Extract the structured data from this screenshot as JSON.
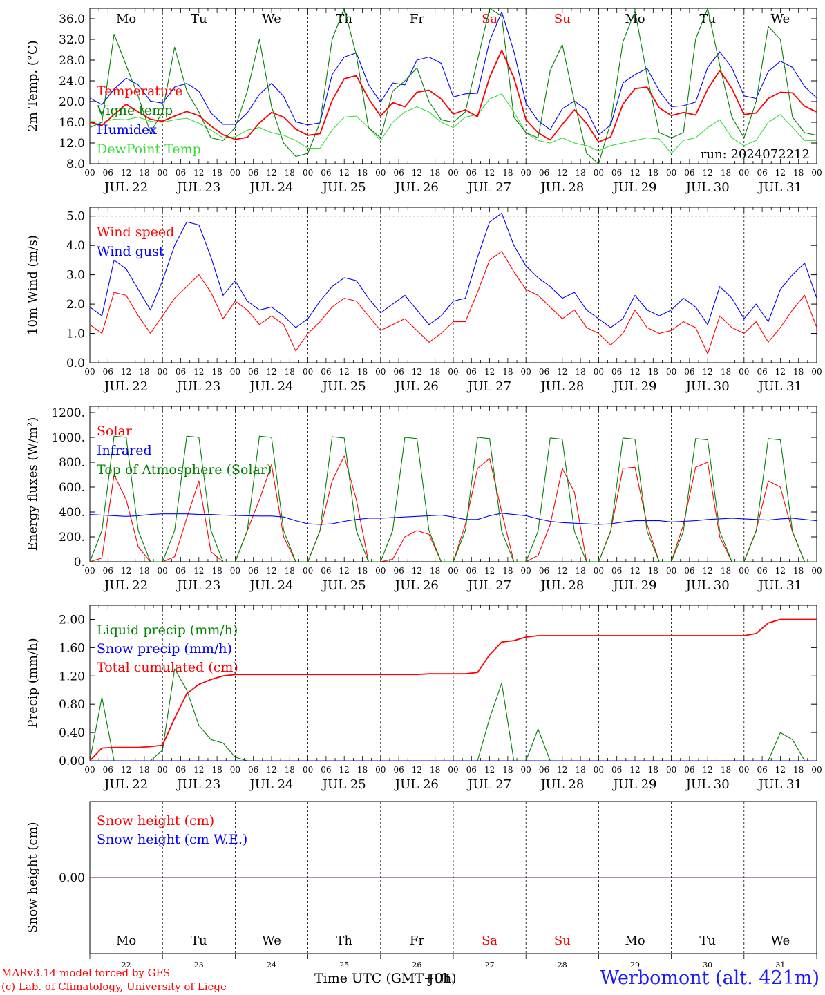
{
  "days": [
    "JUL 22",
    "JUL 23",
    "JUL 24",
    "JUL 25",
    "JUL 26",
    "JUL 27",
    "JUL 28",
    "JUL 29",
    "JUL 30",
    "JUL 31"
  ],
  "day_numbers": [
    "22",
    "23",
    "24",
    "25",
    "26",
    "27",
    "28",
    "29",
    "30",
    "31"
  ],
  "weekdays": [
    "Mo",
    "Tu",
    "We",
    "Th",
    "Fr",
    "Sa",
    "Su",
    "Mo",
    "Tu",
    "We"
  ],
  "weekend_flags": [
    false,
    false,
    false,
    false,
    false,
    true,
    true,
    false,
    false,
    false
  ],
  "hour_ticks": [
    "00",
    "06",
    "12",
    "18"
  ],
  "final_hour_tick": "00",
  "colors": {
    "red": "#ff0000",
    "green": "#008000",
    "blue": "#0000ff",
    "lightgreen": "#33dd33",
    "purple": "#800080",
    "station": "#1a1aff"
  },
  "footer": {
    "credit_line1": "MARv3.14 model forced by GFS",
    "credit_line2": "(c) Lab. of Climatology, University of Liege",
    "x_title": "Time UTC (GMT+0h)",
    "x_title_overlap": "JUL",
    "station": "Werbomont (alt. 421m)"
  },
  "chart_data": [
    {
      "type": "line",
      "ylabel": "2m Temp. (°C)",
      "ylim": [
        8.0,
        38.0
      ],
      "yticks": [
        "8.0",
        "12.0",
        "16.0",
        "20.0",
        "24.0",
        "28.0",
        "32.0",
        "36.0"
      ],
      "annotation": "run: 2024072212",
      "series": [
        {
          "name": "Temperature",
          "color": "#ff0000",
          "values": [
            16.0,
            15.4,
            17.5,
            19.5,
            18.0,
            16.6,
            16.2,
            17.2,
            18.1,
            17.3,
            15.3,
            13.6,
            12.7,
            13.1,
            15.9,
            17.9,
            17.0,
            14.7,
            13.5,
            13.8,
            20.2,
            24.4,
            25.0,
            20.6,
            17.2,
            19.8,
            19.0,
            21.8,
            22.2,
            20.5,
            17.6,
            18.4,
            17.1,
            24.7,
            29.9,
            24.6,
            16.5,
            14.0,
            12.6,
            15.6,
            18.4,
            15.8,
            12.2,
            13.2,
            19.5,
            22.5,
            22.8,
            18.8,
            17.3,
            17.9,
            17.4,
            22.4,
            26.0,
            22.5,
            17.5,
            17.8,
            20.6,
            21.8,
            21.7,
            19.1,
            18.0
          ]
        },
        {
          "name": "Vigne temp",
          "color": "#008000",
          "values": [
            15.0,
            16.0,
            33.0,
            27.0,
            21.0,
            14.0,
            18.0,
            30.5,
            22.0,
            18.0,
            13.0,
            12.5,
            15.0,
            22.0,
            32.0,
            19.0,
            12.0,
            9.4,
            10.0,
            16.0,
            32.0,
            39.0,
            29.0,
            15.0,
            13.0,
            22.0,
            24.0,
            26.5,
            20.0,
            16.5,
            16.0,
            18.0,
            28.0,
            38.5,
            36.5,
            17.0,
            14.0,
            13.0,
            26.0,
            31.0,
            20.0,
            10.0,
            8.0,
            16.0,
            31.5,
            37.5,
            25.0,
            14.0,
            13.0,
            14.0,
            32.0,
            38.0,
            27.0,
            17.0,
            13.0,
            20.0,
            34.5,
            32.0,
            17.0,
            14.0,
            13.5
          ]
        },
        {
          "name": "Humidex",
          "color": "#0000ff",
          "values": [
            20.7,
            19.4,
            22.4,
            24.5,
            23.2,
            20.1,
            19.7,
            22.8,
            23.5,
            22.0,
            17.8,
            15.6,
            15.6,
            17.8,
            21.4,
            23.5,
            21.0,
            16.1,
            15.5,
            15.9,
            25.2,
            28.6,
            29.4,
            23.3,
            19.9,
            23.6,
            23.2,
            28.0,
            28.6,
            27.4,
            20.9,
            21.5,
            21.6,
            31.7,
            37.3,
            29.7,
            19.7,
            16.3,
            14.6,
            18.6,
            20.1,
            18.4,
            13.6,
            15.5,
            23.6,
            25.2,
            26.4,
            22.1,
            19.0,
            19.2,
            19.9,
            26.6,
            29.6,
            26.5,
            21.1,
            20.6,
            25.8,
            27.8,
            26.6,
            22.9,
            20.7
          ]
        },
        {
          "name": "DewPoint Temp",
          "color": "#33dd33",
          "values": [
            16.2,
            16.0,
            16.6,
            16.5,
            17.0,
            16.2,
            16.0,
            16.5,
            16.8,
            15.8,
            14.5,
            13.0,
            13.2,
            14.5,
            15.0,
            14.0,
            13.5,
            12.5,
            11.0,
            11.0,
            14.5,
            17.0,
            17.2,
            15.0,
            12.5,
            16.0,
            18.0,
            19.0,
            18.0,
            16.0,
            15.0,
            17.0,
            17.5,
            20.5,
            21.5,
            18.0,
            14.0,
            12.5,
            12.0,
            13.0,
            12.0,
            11.5,
            10.5,
            11.5,
            12.0,
            12.5,
            13.0,
            12.8,
            10.0,
            12.5,
            13.0,
            15.0,
            16.5,
            13.0,
            11.5,
            12.5,
            16.0,
            17.5,
            15.0,
            12.5,
            12.5
          ]
        }
      ]
    },
    {
      "type": "line",
      "ylabel": "10m Wind (m/s)",
      "ylim": [
        0.0,
        5.3
      ],
      "yticks": [
        "0.0",
        "1.0",
        "2.0",
        "3.0",
        "4.0",
        "5.0"
      ],
      "series": [
        {
          "name": "Wind speed",
          "color": "#ff0000",
          "values": [
            1.3,
            1.0,
            2.4,
            2.3,
            1.6,
            1.0,
            1.6,
            2.2,
            2.6,
            3.0,
            2.4,
            1.5,
            2.1,
            1.8,
            1.3,
            1.6,
            1.3,
            0.4,
            1.0,
            1.4,
            1.9,
            2.2,
            2.1,
            1.6,
            1.1,
            1.3,
            1.5,
            1.1,
            0.7,
            1.0,
            1.4,
            1.4,
            2.4,
            3.5,
            3.8,
            3.1,
            2.5,
            2.3,
            1.9,
            1.5,
            1.8,
            1.2,
            1.0,
            0.6,
            1.0,
            1.8,
            1.2,
            1.0,
            1.1,
            1.4,
            1.2,
            0.3,
            1.6,
            1.2,
            1.0,
            1.4,
            0.7,
            1.2,
            1.8,
            2.3,
            1.2
          ]
        },
        {
          "name": "Wind gust",
          "color": "#0000ff",
          "values": [
            1.9,
            1.6,
            3.5,
            3.2,
            2.5,
            1.8,
            2.8,
            4.0,
            4.8,
            4.7,
            3.6,
            2.3,
            2.8,
            2.1,
            1.8,
            1.9,
            1.6,
            1.2,
            1.5,
            2.1,
            2.6,
            2.9,
            2.8,
            2.2,
            1.7,
            2.0,
            2.3,
            1.8,
            1.3,
            1.6,
            2.1,
            2.2,
            3.6,
            4.8,
            5.1,
            4.0,
            3.3,
            2.9,
            2.6,
            2.2,
            2.4,
            1.8,
            1.5,
            1.2,
            1.5,
            2.3,
            1.8,
            1.6,
            1.8,
            2.2,
            1.9,
            1.3,
            2.6,
            2.2,
            1.5,
            2.0,
            1.4,
            2.5,
            3.0,
            3.4,
            2.2
          ]
        }
      ]
    },
    {
      "type": "line",
      "ylabel": "Energy fluxes (W/m²)",
      "ylim": [
        0,
        1250
      ],
      "yticks": [
        "0.",
        "200.",
        "400.",
        "600.",
        "800.",
        "1000.",
        "1200."
      ],
      "series": [
        {
          "name": "Solar",
          "color": "#ff0000",
          "values": [
            0,
            30,
            700,
            500,
            120,
            0,
            0,
            40,
            350,
            650,
            80,
            0,
            0,
            250,
            500,
            780,
            200,
            0,
            0,
            250,
            650,
            850,
            500,
            0,
            0,
            20,
            200,
            250,
            220,
            0,
            0,
            300,
            750,
            830,
            400,
            0,
            0,
            50,
            300,
            750,
            560,
            0,
            0,
            250,
            750,
            760,
            300,
            0,
            0,
            300,
            760,
            800,
            200,
            0,
            0,
            250,
            650,
            600,
            240,
            0,
            0
          ]
        },
        {
          "name": "Infrared",
          "color": "#0000ff",
          "values": [
            380,
            375,
            370,
            365,
            370,
            380,
            385,
            385,
            385,
            380,
            380,
            375,
            372,
            370,
            368,
            368,
            360,
            330,
            305,
            300,
            305,
            325,
            340,
            350,
            350,
            355,
            360,
            365,
            370,
            375,
            360,
            340,
            340,
            370,
            390,
            380,
            370,
            345,
            325,
            315,
            310,
            305,
            300,
            305,
            320,
            330,
            330,
            330,
            320,
            325,
            330,
            340,
            345,
            350,
            345,
            340,
            335,
            345,
            350,
            340,
            330
          ]
        },
        {
          "name": "Top of Atmosphere (Solar)",
          "color": "#008000",
          "values": [
            0,
            250,
            1010,
            1000,
            250,
            0,
            0,
            250,
            1010,
            1000,
            250,
            0,
            0,
            250,
            1010,
            1000,
            250,
            0,
            0,
            250,
            1005,
            995,
            250,
            0,
            0,
            250,
            1000,
            990,
            250,
            0,
            0,
            250,
            1000,
            990,
            245,
            0,
            0,
            245,
            995,
            985,
            245,
            0,
            0,
            245,
            995,
            985,
            245,
            0,
            0,
            245,
            990,
            980,
            245,
            0,
            0,
            245,
            990,
            980,
            245,
            0,
            0
          ]
        }
      ]
    },
    {
      "type": "line",
      "ylabel": "Precip (mm/h)",
      "ylim": [
        0.0,
        2.2
      ],
      "yticks": [
        "0.00",
        "0.40",
        "0.80",
        "1.20",
        "1.60",
        "2.00"
      ],
      "series": [
        {
          "name": "Liquid precip (mm/h)",
          "color": "#008000",
          "values": [
            0,
            0.9,
            0,
            0,
            0,
            0,
            0.15,
            1.3,
            1.0,
            0.5,
            0.3,
            0.25,
            0.05,
            0,
            0,
            0,
            0,
            0,
            0,
            0,
            0,
            0,
            0,
            0,
            0,
            0,
            0,
            0,
            0,
            0,
            0,
            0,
            0,
            0.6,
            1.1,
            0,
            0,
            0.45,
            0,
            0,
            0,
            0,
            0,
            0,
            0,
            0,
            0,
            0,
            0,
            0,
            0,
            0,
            0,
            0,
            0,
            0,
            0,
            0.4,
            0.3,
            0,
            0
          ]
        },
        {
          "name": "Snow precip (mm/h)",
          "color": "#0000ff",
          "values": [
            0,
            0,
            0,
            0,
            0,
            0,
            0,
            0,
            0,
            0,
            0,
            0,
            0,
            0,
            0,
            0,
            0,
            0,
            0,
            0,
            0,
            0,
            0,
            0,
            0,
            0,
            0,
            0,
            0,
            0,
            0,
            0,
            0,
            0,
            0,
            0,
            0,
            0,
            0,
            0,
            0,
            0,
            0,
            0,
            0,
            0,
            0,
            0,
            0,
            0,
            0,
            0,
            0,
            0,
            0,
            0,
            0,
            0,
            0,
            0,
            0
          ]
        },
        {
          "name": "Total cumulated (cm)",
          "color": "#ff0000",
          "values": [
            0,
            0.18,
            0.19,
            0.19,
            0.19,
            0.2,
            0.22,
            0.6,
            0.95,
            1.08,
            1.15,
            1.2,
            1.22,
            1.22,
            1.22,
            1.22,
            1.22,
            1.22,
            1.22,
            1.22,
            1.22,
            1.22,
            1.22,
            1.22,
            1.22,
            1.22,
            1.22,
            1.22,
            1.23,
            1.23,
            1.23,
            1.23,
            1.25,
            1.5,
            1.68,
            1.7,
            1.75,
            1.77,
            1.77,
            1.77,
            1.77,
            1.77,
            1.77,
            1.77,
            1.77,
            1.77,
            1.77,
            1.77,
            1.77,
            1.77,
            1.77,
            1.77,
            1.77,
            1.77,
            1.77,
            1.8,
            1.95,
            2.0,
            2.0,
            2.0,
            2.0
          ]
        }
      ]
    },
    {
      "type": "line",
      "ylabel": "Snow height (cm)",
      "ylim": [
        -1,
        1
      ],
      "yticks": [
        "0.00"
      ],
      "series": [
        {
          "name": "Snow height (cm)",
          "color": "#ff0000",
          "values": [
            0,
            0
          ]
        },
        {
          "name": "Snow height (cm W.E.)",
          "color": "#0000ff",
          "values": [
            0,
            0
          ]
        }
      ]
    }
  ]
}
